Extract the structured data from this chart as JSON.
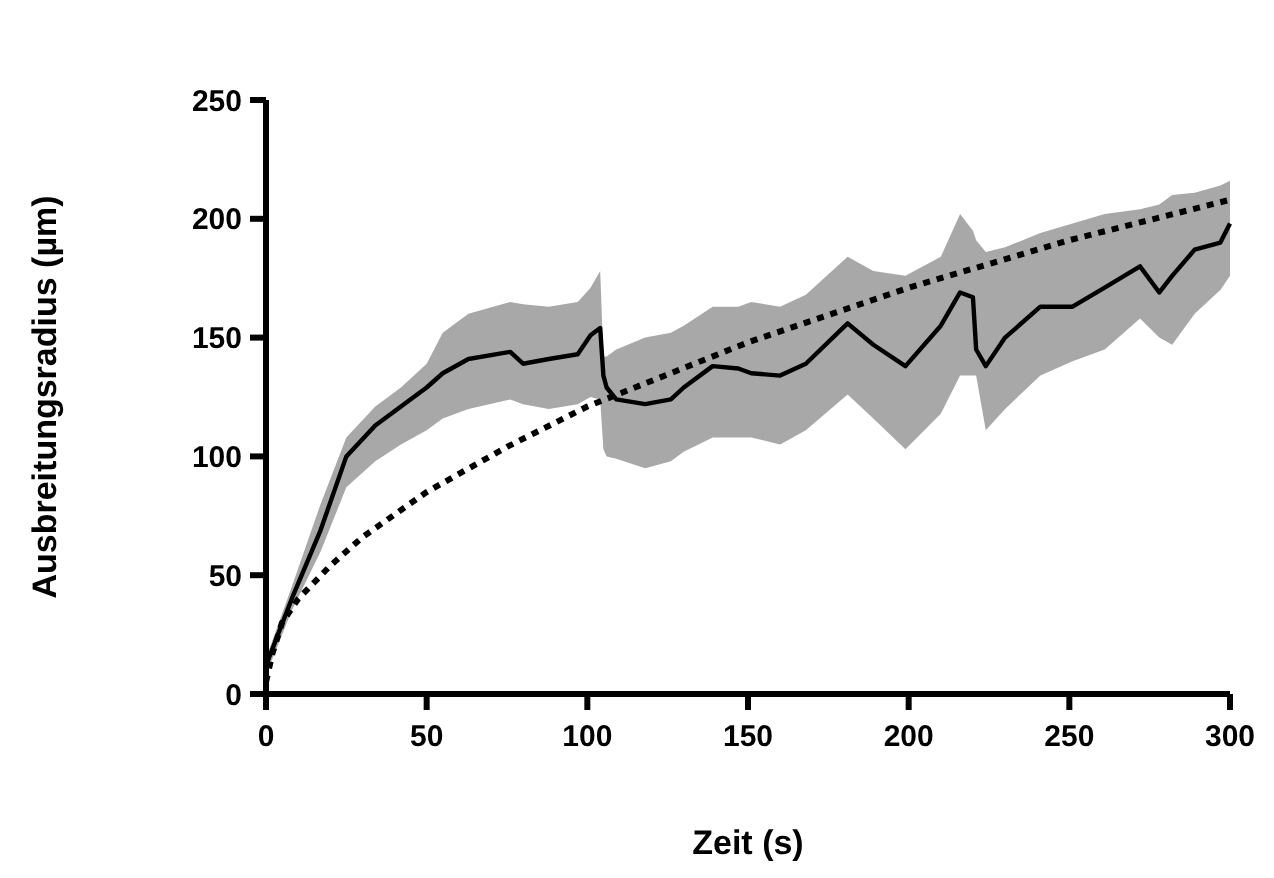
{
  "chart_data": {
    "type": "line",
    "xlabel": "Zeit (s)",
    "ylabel": "Ausbreitungsradius (µm)",
    "xlim": [
      0,
      300
    ],
    "xticks": [
      0,
      50,
      100,
      150,
      200,
      250,
      300
    ],
    "ylim": [
      0,
      250
    ],
    "yticks": [
      0,
      50,
      100,
      150,
      200,
      250
    ],
    "grid": false,
    "series": [
      {
        "color": "#000000",
        "line_style": "solid",
        "x": [
          0,
          8,
          17,
          25,
          34,
          42,
          50,
          55,
          63,
          76,
          80,
          88,
          97,
          101,
          104,
          105,
          106,
          109,
          118,
          126,
          130,
          139,
          147,
          151,
          160,
          168,
          181,
          189,
          199,
          210,
          216,
          220,
          221,
          224,
          230,
          241,
          251,
          261,
          272,
          278,
          282,
          289,
          297,
          300
        ],
        "values": [
          12,
          40,
          69,
          100,
          113,
          121,
          129,
          135,
          141,
          144,
          139,
          141,
          143,
          151,
          154,
          134,
          129,
          124,
          122,
          124,
          129,
          138,
          137,
          135,
          134,
          139,
          156,
          147,
          138,
          155,
          169,
          167,
          145,
          138,
          150,
          163,
          163,
          171,
          180,
          169,
          176,
          187,
          190,
          198
        ],
        "upper": [
          15,
          45,
          80,
          108,
          121,
          129,
          139,
          152,
          160,
          165,
          164,
          163,
          165,
          171,
          178,
          142,
          142,
          145,
          150,
          152,
          155,
          163,
          163,
          165,
          163,
          168,
          184,
          178,
          176,
          184,
          202,
          195,
          191,
          186,
          188,
          194,
          198,
          202,
          204,
          206,
          210,
          211,
          214,
          216
        ],
        "lower": [
          8,
          35,
          60,
          87,
          98,
          105,
          111,
          116,
          120,
          124,
          122,
          120,
          122,
          125,
          124,
          103,
          100,
          99,
          95,
          98,
          102,
          108,
          108,
          108,
          105,
          111,
          126,
          116,
          103,
          118,
          134,
          134,
          134,
          111,
          120,
          134,
          140,
          145,
          158,
          150,
          147,
          160,
          170,
          176
        ]
      },
      {
        "color": "#000000",
        "line_style": "dotted",
        "x": [
          0,
          2,
          5,
          10,
          20,
          30,
          50,
          75,
          100,
          150,
          200,
          250,
          300
        ],
        "values": [
          5,
          17,
          30,
          40,
          54,
          66,
          85,
          104,
          121,
          148,
          171,
          191,
          208
        ]
      }
    ]
  }
}
